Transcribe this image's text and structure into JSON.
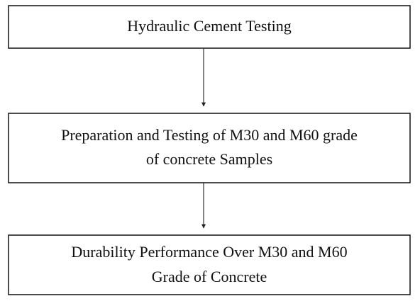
{
  "nodes": [
    {
      "lines": [
        "Hydraulic Cement Testing"
      ]
    },
    {
      "lines": [
        "Preparation and Testing of M30 and M60 grade",
        "of concrete Samples"
      ]
    },
    {
      "lines": [
        "Durability Performance Over M30 and M60",
        "Grade of Concrete"
      ]
    }
  ]
}
